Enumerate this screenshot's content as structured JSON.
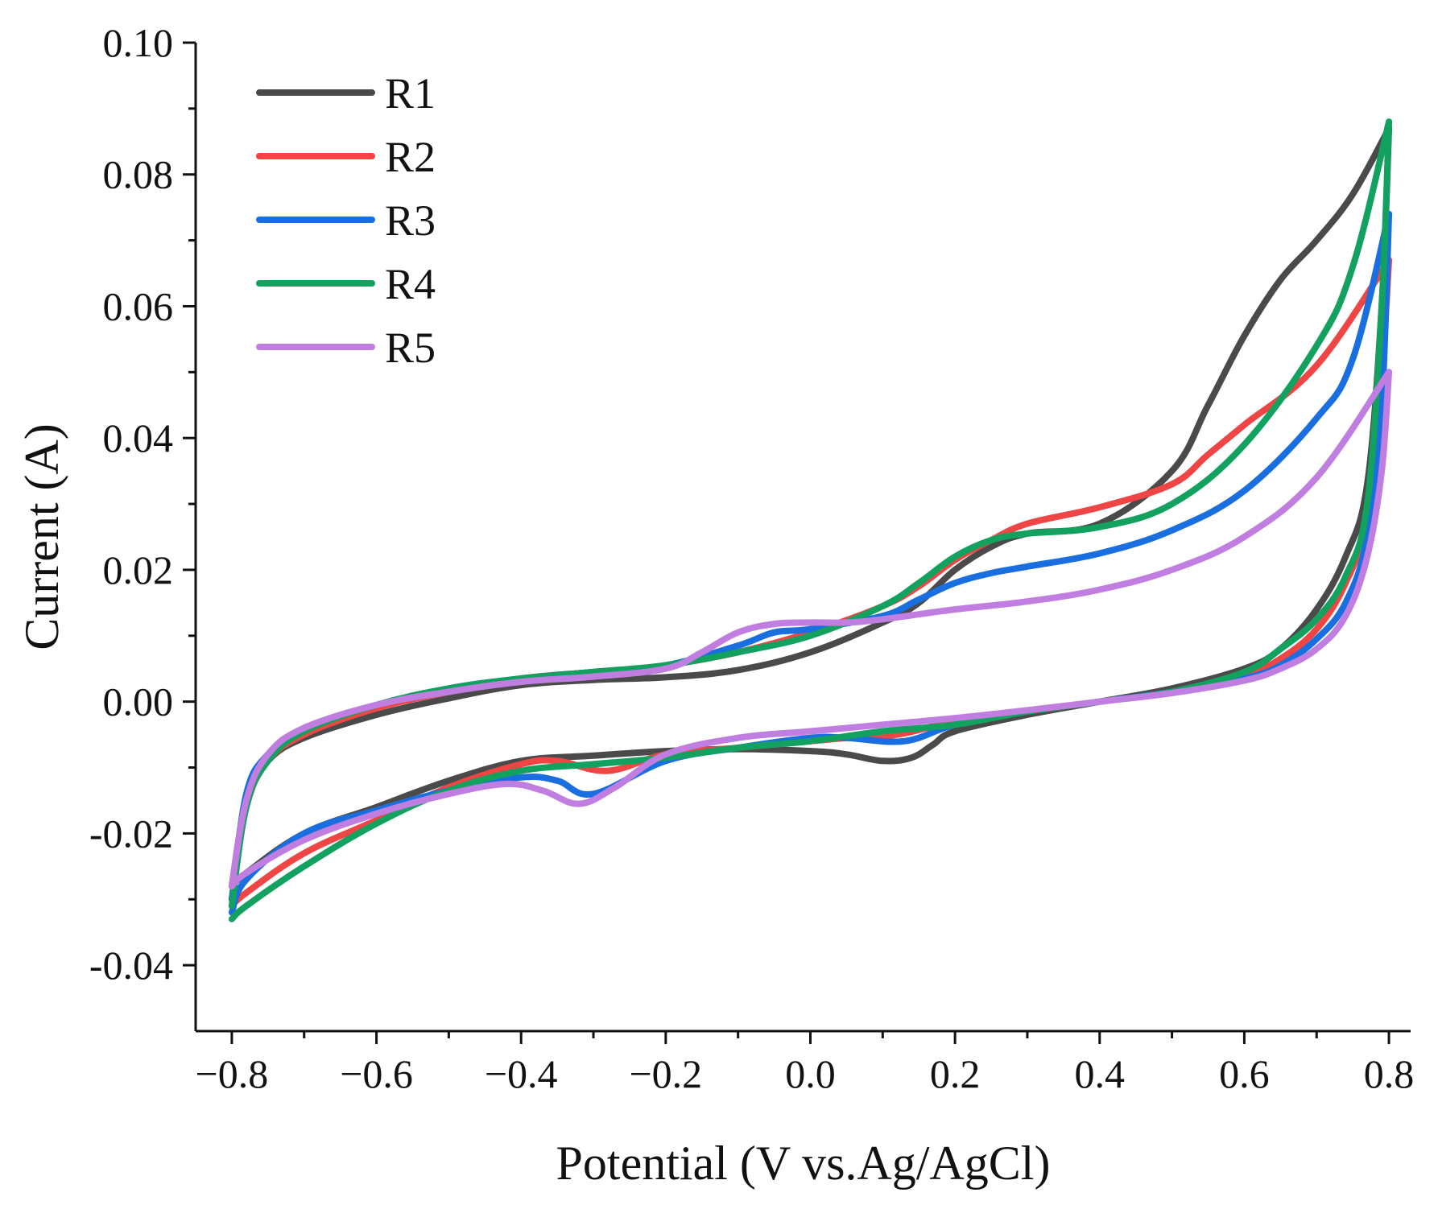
{
  "chart_data": {
    "type": "line",
    "title": "",
    "xlabel": "Potential (V vs.Ag/AgCl)",
    "ylabel": "Current (A)",
    "xlim": [
      -0.85,
      0.83
    ],
    "ylim": [
      -0.05,
      0.1
    ],
    "xticks": [
      -0.8,
      -0.6,
      -0.4,
      -0.2,
      0.0,
      0.2,
      0.4,
      0.6,
      0.8
    ],
    "xtick_labels": [
      "−0.8",
      "−0.6",
      "−0.4",
      "−0.2",
      "0.0",
      "0.2",
      "0.4",
      "0.6",
      "0.8"
    ],
    "yticks": [
      -0.04,
      -0.02,
      0.0,
      0.02,
      0.04,
      0.06,
      0.08,
      0.1
    ],
    "ytick_labels": [
      "-0.04",
      "-0.02",
      "0.00",
      "0.02",
      "0.04",
      "0.06",
      "0.08",
      "0.10"
    ],
    "grid": false,
    "legend_position": "top-left",
    "series": [
      {
        "name": "R1",
        "color": "#4a4a4a",
        "anodic": [
          [
            -0.8,
            -0.028
          ],
          [
            -0.78,
            -0.015
          ],
          [
            -0.75,
            -0.009
          ],
          [
            -0.7,
            -0.0055
          ],
          [
            -0.6,
            -0.002
          ],
          [
            -0.5,
            0.0005
          ],
          [
            -0.4,
            0.0025
          ],
          [
            -0.3,
            0.0033
          ],
          [
            -0.2,
            0.0037
          ],
          [
            -0.1,
            0.0048
          ],
          [
            0.0,
            0.0075
          ],
          [
            0.1,
            0.012
          ],
          [
            0.15,
            0.015
          ],
          [
            0.2,
            0.02
          ],
          [
            0.25,
            0.0235
          ],
          [
            0.3,
            0.0255
          ],
          [
            0.4,
            0.027
          ],
          [
            0.5,
            0.035
          ],
          [
            0.55,
            0.045
          ],
          [
            0.6,
            0.0555
          ],
          [
            0.65,
            0.064
          ],
          [
            0.7,
            0.07
          ],
          [
            0.75,
            0.077
          ],
          [
            0.8,
            0.087
          ]
        ],
        "cathodic": [
          [
            0.8,
            0.087
          ],
          [
            0.79,
            0.06
          ],
          [
            0.77,
            0.033
          ],
          [
            0.74,
            0.022
          ],
          [
            0.7,
            0.014
          ],
          [
            0.65,
            0.008
          ],
          [
            0.6,
            0.005
          ],
          [
            0.5,
            0.002
          ],
          [
            0.4,
            0.0
          ],
          [
            0.3,
            -0.002
          ],
          [
            0.2,
            -0.0045
          ],
          [
            0.17,
            -0.0065
          ],
          [
            0.14,
            -0.0085
          ],
          [
            0.1,
            -0.009
          ],
          [
            0.05,
            -0.008
          ],
          [
            0.0,
            -0.0075
          ],
          [
            -0.1,
            -0.0072
          ],
          [
            -0.2,
            -0.0075
          ],
          [
            -0.3,
            -0.0082
          ],
          [
            -0.4,
            -0.009
          ],
          [
            -0.5,
            -0.012
          ],
          [
            -0.6,
            -0.016
          ],
          [
            -0.7,
            -0.02
          ],
          [
            -0.78,
            -0.026
          ],
          [
            -0.8,
            -0.028
          ]
        ]
      },
      {
        "name": "R2",
        "color": "#f04545",
        "anodic": [
          [
            -0.8,
            -0.03
          ],
          [
            -0.78,
            -0.016
          ],
          [
            -0.75,
            -0.009
          ],
          [
            -0.7,
            -0.005
          ],
          [
            -0.6,
            -0.001
          ],
          [
            -0.5,
            0.0015
          ],
          [
            -0.4,
            0.0035
          ],
          [
            -0.3,
            0.0045
          ],
          [
            -0.2,
            0.0055
          ],
          [
            -0.1,
            0.0075
          ],
          [
            0.0,
            0.0105
          ],
          [
            0.1,
            0.0145
          ],
          [
            0.15,
            0.0175
          ],
          [
            0.2,
            0.0215
          ],
          [
            0.25,
            0.0245
          ],
          [
            0.3,
            0.027
          ],
          [
            0.4,
            0.0295
          ],
          [
            0.5,
            0.033
          ],
          [
            0.55,
            0.0375
          ],
          [
            0.6,
            0.042
          ],
          [
            0.7,
            0.051
          ],
          [
            0.8,
            0.067
          ]
        ],
        "cathodic": [
          [
            0.8,
            0.067
          ],
          [
            0.79,
            0.05
          ],
          [
            0.77,
            0.028
          ],
          [
            0.74,
            0.018
          ],
          [
            0.7,
            0.011
          ],
          [
            0.65,
            0.0065
          ],
          [
            0.6,
            0.004
          ],
          [
            0.5,
            0.0015
          ],
          [
            0.4,
            0.0
          ],
          [
            0.3,
            -0.0015
          ],
          [
            0.2,
            -0.003
          ],
          [
            0.12,
            -0.005
          ],
          [
            0.05,
            -0.0055
          ],
          [
            0.0,
            -0.006
          ],
          [
            -0.1,
            -0.007
          ],
          [
            -0.2,
            -0.008
          ],
          [
            -0.28,
            -0.0105
          ],
          [
            -0.35,
            -0.009
          ],
          [
            -0.4,
            -0.0095
          ],
          [
            -0.5,
            -0.013
          ],
          [
            -0.6,
            -0.018
          ],
          [
            -0.7,
            -0.023
          ],
          [
            -0.78,
            -0.029
          ],
          [
            -0.8,
            -0.031
          ]
        ]
      },
      {
        "name": "R3",
        "color": "#1a6fe0",
        "anodic": [
          [
            -0.8,
            -0.03
          ],
          [
            -0.78,
            -0.014
          ],
          [
            -0.75,
            -0.008
          ],
          [
            -0.7,
            -0.004
          ],
          [
            -0.6,
            -0.0005
          ],
          [
            -0.5,
            0.002
          ],
          [
            -0.4,
            0.0035
          ],
          [
            -0.3,
            0.0045
          ],
          [
            -0.2,
            0.0055
          ],
          [
            -0.1,
            0.0085
          ],
          [
            -0.05,
            0.0105
          ],
          [
            0.0,
            0.011
          ],
          [
            0.1,
            0.013
          ],
          [
            0.15,
            0.0155
          ],
          [
            0.2,
            0.018
          ],
          [
            0.25,
            0.0195
          ],
          [
            0.3,
            0.0205
          ],
          [
            0.4,
            0.0225
          ],
          [
            0.5,
            0.026
          ],
          [
            0.6,
            0.032
          ],
          [
            0.7,
            0.043
          ],
          [
            0.75,
            0.052
          ],
          [
            0.8,
            0.074
          ]
        ],
        "cathodic": [
          [
            0.8,
            0.074
          ],
          [
            0.79,
            0.045
          ],
          [
            0.77,
            0.025
          ],
          [
            0.74,
            0.015
          ],
          [
            0.7,
            0.0095
          ],
          [
            0.65,
            0.0055
          ],
          [
            0.6,
            0.0035
          ],
          [
            0.5,
            0.0015
          ],
          [
            0.4,
            0.0
          ],
          [
            0.3,
            -0.0015
          ],
          [
            0.2,
            -0.0035
          ],
          [
            0.13,
            -0.006
          ],
          [
            0.05,
            -0.0055
          ],
          [
            0.0,
            -0.0055
          ],
          [
            -0.1,
            -0.007
          ],
          [
            -0.2,
            -0.009
          ],
          [
            -0.3,
            -0.014
          ],
          [
            -0.35,
            -0.012
          ],
          [
            -0.4,
            -0.0115
          ],
          [
            -0.5,
            -0.0135
          ],
          [
            -0.6,
            -0.0165
          ],
          [
            -0.7,
            -0.02
          ],
          [
            -0.78,
            -0.027
          ],
          [
            -0.8,
            -0.032
          ]
        ]
      },
      {
        "name": "R4",
        "color": "#12a15e",
        "anodic": [
          [
            -0.8,
            -0.031
          ],
          [
            -0.78,
            -0.016
          ],
          [
            -0.75,
            -0.009
          ],
          [
            -0.7,
            -0.0045
          ],
          [
            -0.6,
            -0.0005
          ],
          [
            -0.5,
            0.002
          ],
          [
            -0.4,
            0.0035
          ],
          [
            -0.3,
            0.0045
          ],
          [
            -0.2,
            0.0055
          ],
          [
            -0.1,
            0.0075
          ],
          [
            0.0,
            0.01
          ],
          [
            0.1,
            0.0145
          ],
          [
            0.15,
            0.018
          ],
          [
            0.2,
            0.022
          ],
          [
            0.25,
            0.0245
          ],
          [
            0.3,
            0.0255
          ],
          [
            0.4,
            0.0265
          ],
          [
            0.5,
            0.03
          ],
          [
            0.6,
            0.039
          ],
          [
            0.7,
            0.054
          ],
          [
            0.75,
            0.066
          ],
          [
            0.8,
            0.088
          ]
        ],
        "cathodic": [
          [
            0.8,
            0.088
          ],
          [
            0.79,
            0.06
          ],
          [
            0.77,
            0.03
          ],
          [
            0.74,
            0.019
          ],
          [
            0.7,
            0.0125
          ],
          [
            0.65,
            0.008
          ],
          [
            0.6,
            0.0045
          ],
          [
            0.5,
            0.0015
          ],
          [
            0.4,
            0.0
          ],
          [
            0.3,
            -0.0015
          ],
          [
            0.2,
            -0.0035
          ],
          [
            0.1,
            -0.0045
          ],
          [
            0.0,
            -0.006
          ],
          [
            -0.1,
            -0.007
          ],
          [
            -0.2,
            -0.0085
          ],
          [
            -0.3,
            -0.0095
          ],
          [
            -0.4,
            -0.0105
          ],
          [
            -0.5,
            -0.0135
          ],
          [
            -0.6,
            -0.0185
          ],
          [
            -0.7,
            -0.025
          ],
          [
            -0.78,
            -0.031
          ],
          [
            -0.8,
            -0.033
          ]
        ]
      },
      {
        "name": "R5",
        "color": "#c07ee0",
        "anodic": [
          [
            -0.8,
            -0.028
          ],
          [
            -0.78,
            -0.015
          ],
          [
            -0.75,
            -0.008
          ],
          [
            -0.7,
            -0.004
          ],
          [
            -0.6,
            -0.0005
          ],
          [
            -0.5,
            0.0015
          ],
          [
            -0.4,
            0.003
          ],
          [
            -0.3,
            0.0038
          ],
          [
            -0.2,
            0.005
          ],
          [
            -0.15,
            0.0075
          ],
          [
            -0.1,
            0.0105
          ],
          [
            -0.05,
            0.0118
          ],
          [
            0.0,
            0.012
          ],
          [
            0.05,
            0.012
          ],
          [
            0.1,
            0.0125
          ],
          [
            0.2,
            0.014
          ],
          [
            0.3,
            0.0152
          ],
          [
            0.4,
            0.017
          ],
          [
            0.5,
            0.02
          ],
          [
            0.6,
            0.025
          ],
          [
            0.7,
            0.034
          ],
          [
            0.8,
            0.05
          ]
        ],
        "cathodic": [
          [
            0.8,
            0.05
          ],
          [
            0.79,
            0.035
          ],
          [
            0.77,
            0.022
          ],
          [
            0.74,
            0.013
          ],
          [
            0.7,
            0.008
          ],
          [
            0.65,
            0.005
          ],
          [
            0.6,
            0.0032
          ],
          [
            0.5,
            0.0013
          ],
          [
            0.4,
            0.0
          ],
          [
            0.3,
            -0.0013
          ],
          [
            0.2,
            -0.0025
          ],
          [
            0.1,
            -0.0035
          ],
          [
            0.0,
            -0.0045
          ],
          [
            -0.1,
            -0.0055
          ],
          [
            -0.2,
            -0.008
          ],
          [
            -0.27,
            -0.013
          ],
          [
            -0.32,
            -0.0155
          ],
          [
            -0.37,
            -0.0135
          ],
          [
            -0.42,
            -0.0125
          ],
          [
            -0.5,
            -0.014
          ],
          [
            -0.6,
            -0.017
          ],
          [
            -0.7,
            -0.021
          ],
          [
            -0.78,
            -0.026
          ],
          [
            -0.8,
            -0.028
          ]
        ]
      }
    ]
  }
}
